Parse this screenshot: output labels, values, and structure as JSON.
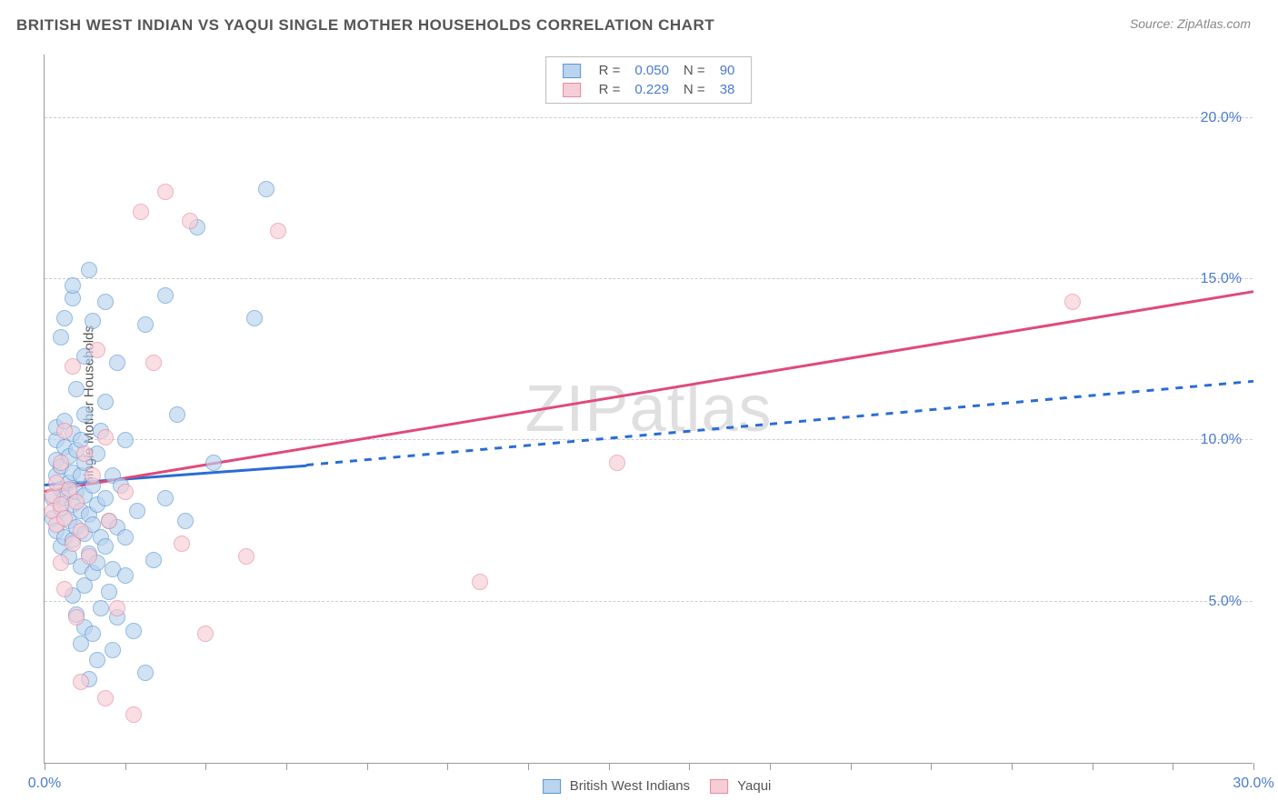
{
  "title": "BRITISH WEST INDIAN VS YAQUI SINGLE MOTHER HOUSEHOLDS CORRELATION CHART",
  "source_label": "Source: ",
  "source_name": "ZipAtlas.com",
  "ylabel": "Single Mother Households",
  "watermark_a": "ZIP",
  "watermark_b": "atlas",
  "chart": {
    "type": "scatter",
    "xlim": [
      0,
      30
    ],
    "ylim": [
      0,
      22
    ],
    "background_color": "#ffffff",
    "grid_color": "#cccccc",
    "axis_color": "#999999",
    "y_gridlines": [
      5,
      10,
      15,
      20
    ],
    "y_tick_labels": [
      "5.0%",
      "10.0%",
      "15.0%",
      "20.0%"
    ],
    "x_ticks": [
      0,
      2,
      4,
      6,
      8,
      10,
      12,
      14,
      16,
      18,
      20,
      22,
      24,
      26,
      28,
      30
    ],
    "x_tick_labels": {
      "0": "0.0%",
      "30": "30.0%"
    },
    "label_color": "#4a7bd0",
    "label_fontsize": 16,
    "point_radius": 9,
    "series": [
      {
        "name": "British West Indians",
        "fill": "#b9d4ee",
        "stroke": "#5a96d4",
        "R": "0.050",
        "N": "90",
        "trend": {
          "x1": 0,
          "y1": 8.6,
          "x2_solid": 6.5,
          "y2_solid": 9.2,
          "x2_dash": 30,
          "y2_dash": 11.8,
          "dashed_after_solid": true,
          "color": "#2b6cd4",
          "width": 2.5
        },
        "points": [
          [
            0.2,
            7.6
          ],
          [
            0.2,
            8.2
          ],
          [
            0.3,
            8.9
          ],
          [
            0.3,
            7.2
          ],
          [
            0.3,
            9.4
          ],
          [
            0.3,
            10.0
          ],
          [
            0.3,
            10.4
          ],
          [
            0.4,
            6.7
          ],
          [
            0.4,
            7.9
          ],
          [
            0.4,
            8.5
          ],
          [
            0.4,
            9.2
          ],
          [
            0.4,
            13.2
          ],
          [
            0.5,
            7.0
          ],
          [
            0.5,
            8.2
          ],
          [
            0.5,
            9.8
          ],
          [
            0.5,
            10.6
          ],
          [
            0.5,
            13.8
          ],
          [
            0.6,
            6.4
          ],
          [
            0.6,
            7.5
          ],
          [
            0.6,
            8.7
          ],
          [
            0.6,
            9.5
          ],
          [
            0.7,
            5.2
          ],
          [
            0.7,
            6.9
          ],
          [
            0.7,
            8.0
          ],
          [
            0.7,
            9.0
          ],
          [
            0.7,
            10.2
          ],
          [
            0.7,
            14.4
          ],
          [
            0.7,
            14.8
          ],
          [
            0.8,
            4.6
          ],
          [
            0.8,
            7.3
          ],
          [
            0.8,
            8.4
          ],
          [
            0.8,
            9.7
          ],
          [
            0.8,
            11.6
          ],
          [
            0.9,
            3.7
          ],
          [
            0.9,
            6.1
          ],
          [
            0.9,
            7.8
          ],
          [
            0.9,
            8.9
          ],
          [
            0.9,
            10.0
          ],
          [
            1.0,
            4.2
          ],
          [
            1.0,
            5.5
          ],
          [
            1.0,
            7.1
          ],
          [
            1.0,
            8.3
          ],
          [
            1.0,
            9.3
          ],
          [
            1.0,
            10.8
          ],
          [
            1.0,
            12.6
          ],
          [
            1.1,
            2.6
          ],
          [
            1.1,
            6.5
          ],
          [
            1.1,
            7.7
          ],
          [
            1.1,
            15.3
          ],
          [
            1.2,
            4.0
          ],
          [
            1.2,
            5.9
          ],
          [
            1.2,
            7.4
          ],
          [
            1.2,
            8.6
          ],
          [
            1.2,
            13.7
          ],
          [
            1.3,
            3.2
          ],
          [
            1.3,
            6.2
          ],
          [
            1.3,
            8.0
          ],
          [
            1.3,
            9.6
          ],
          [
            1.4,
            4.8
          ],
          [
            1.4,
            7.0
          ],
          [
            1.4,
            10.3
          ],
          [
            1.5,
            6.7
          ],
          [
            1.5,
            8.2
          ],
          [
            1.5,
            11.2
          ],
          [
            1.5,
            14.3
          ],
          [
            1.6,
            5.3
          ],
          [
            1.6,
            7.5
          ],
          [
            1.7,
            3.5
          ],
          [
            1.7,
            6.0
          ],
          [
            1.7,
            8.9
          ],
          [
            1.8,
            4.5
          ],
          [
            1.8,
            7.3
          ],
          [
            1.8,
            12.4
          ],
          [
            1.9,
            8.6
          ],
          [
            2.0,
            5.8
          ],
          [
            2.0,
            7.0
          ],
          [
            2.0,
            10.0
          ],
          [
            2.2,
            4.1
          ],
          [
            2.3,
            7.8
          ],
          [
            2.5,
            2.8
          ],
          [
            2.5,
            13.6
          ],
          [
            2.7,
            6.3
          ],
          [
            3.0,
            8.2
          ],
          [
            3.0,
            14.5
          ],
          [
            3.3,
            10.8
          ],
          [
            3.5,
            7.5
          ],
          [
            3.8,
            16.6
          ],
          [
            4.2,
            9.3
          ],
          [
            5.2,
            13.8
          ],
          [
            5.5,
            17.8
          ]
        ]
      },
      {
        "name": "Yaqui",
        "fill": "#f6cdd6",
        "stroke": "#e68aa0",
        "R": "0.229",
        "N": "38",
        "trend": {
          "x1": 0,
          "y1": 8.4,
          "x2_solid": 30,
          "y2_solid": 14.6,
          "dashed_after_solid": false,
          "color": "#e04a78",
          "width": 2.5
        },
        "points": [
          [
            0.2,
            7.8
          ],
          [
            0.2,
            8.3
          ],
          [
            0.3,
            7.4
          ],
          [
            0.3,
            8.7
          ],
          [
            0.4,
            6.2
          ],
          [
            0.4,
            8.0
          ],
          [
            0.4,
            9.3
          ],
          [
            0.5,
            5.4
          ],
          [
            0.5,
            7.6
          ],
          [
            0.5,
            10.3
          ],
          [
            0.6,
            8.5
          ],
          [
            0.7,
            6.8
          ],
          [
            0.7,
            12.3
          ],
          [
            0.8,
            4.5
          ],
          [
            0.8,
            8.1
          ],
          [
            0.9,
            2.5
          ],
          [
            0.9,
            7.2
          ],
          [
            1.0,
            9.6
          ],
          [
            1.1,
            6.4
          ],
          [
            1.2,
            8.9
          ],
          [
            1.3,
            12.8
          ],
          [
            1.5,
            2.0
          ],
          [
            1.5,
            10.1
          ],
          [
            1.6,
            7.5
          ],
          [
            1.8,
            4.8
          ],
          [
            2.0,
            8.4
          ],
          [
            2.2,
            1.5
          ],
          [
            2.4,
            17.1
          ],
          [
            2.7,
            12.4
          ],
          [
            3.0,
            17.7
          ],
          [
            3.4,
            6.8
          ],
          [
            3.6,
            16.8
          ],
          [
            4.0,
            4.0
          ],
          [
            5.0,
            6.4
          ],
          [
            5.8,
            16.5
          ],
          [
            10.8,
            5.6
          ],
          [
            14.2,
            9.3
          ],
          [
            25.5,
            14.3
          ]
        ]
      }
    ]
  },
  "legend_top": {
    "r_label": "R =",
    "n_label": "N ="
  }
}
